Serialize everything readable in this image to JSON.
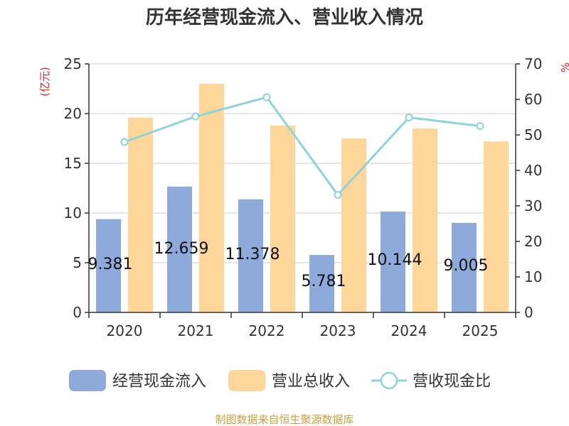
{
  "chart_data": {
    "type": "bar",
    "title": "历年经营现金流入、营业收入情况",
    "categories": [
      "2020",
      "2021",
      "2022",
      "2023",
      "2024",
      "2025"
    ],
    "y_left": {
      "unit": "(亿元)",
      "ylim": [
        0,
        25
      ],
      "ticks": [
        0,
        5,
        10,
        15,
        20,
        25
      ]
    },
    "y_right": {
      "unit": "%",
      "ylim": [
        0,
        70
      ],
      "ticks": [
        0,
        10,
        20,
        30,
        40,
        50,
        60,
        70
      ]
    },
    "series": [
      {
        "name": "经营现金流入",
        "type": "bar",
        "axis": "left",
        "color": "#8eaadb",
        "values": [
          9.381,
          12.659,
          11.378,
          5.781,
          10.144,
          9.005
        ],
        "labels": [
          "9.381",
          "12.659",
          "11.378",
          "5.781",
          "10.144",
          "9.005"
        ]
      },
      {
        "name": "营业总收入",
        "type": "bar",
        "axis": "left",
        "color": "#ffd699",
        "values": [
          19.6,
          23.0,
          18.8,
          17.5,
          18.5,
          17.2
        ]
      },
      {
        "name": "营收现金比",
        "type": "line",
        "axis": "right",
        "color": "#8dd4d6",
        "values": [
          48.0,
          55.2,
          60.6,
          33.1,
          54.9,
          52.5
        ]
      }
    ],
    "grid": true,
    "legend": "bottom"
  },
  "footer": {
    "source": "制图数据来自恒生聚源数据库",
    "color": "#c8a040"
  }
}
